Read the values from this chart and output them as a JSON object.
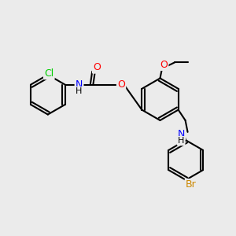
{
  "title": "",
  "bg_color": "#ebebeb",
  "bond_color": "#000000",
  "atom_colors": {
    "N": "#0000ff",
    "O": "#ff0000",
    "Cl": "#00cc00",
    "Br": "#cc8800",
    "H": "#000000",
    "C": "#000000"
  },
  "font_size": 9,
  "bond_width": 1.5,
  "figsize": [
    3.0,
    3.0
  ],
  "dpi": 100
}
